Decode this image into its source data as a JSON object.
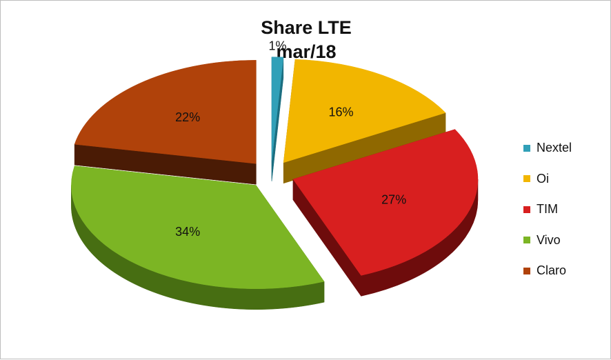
{
  "chart_data": {
    "type": "pie",
    "title": "Share LTE",
    "subtitle": "mar/18",
    "series": [
      {
        "name": "Nextel",
        "value": 1,
        "label": "1%",
        "color": "#31A0B8",
        "side": "#1B6E80"
      },
      {
        "name": "Oi",
        "value": 16,
        "label": "16%",
        "color": "#F2B600",
        "side": "#8F6800"
      },
      {
        "name": "TIM",
        "value": 27,
        "label": "27%",
        "color": "#D81F1F",
        "side": "#6E0C0C"
      },
      {
        "name": "Vivo",
        "value": 34,
        "label": "34%",
        "color": "#7CB524",
        "side": "#476E12"
      },
      {
        "name": "Claro",
        "value": 22,
        "label": "22%",
        "color": "#B0420A",
        "side": "#4A1B05"
      }
    ],
    "legend_position": "right"
  }
}
